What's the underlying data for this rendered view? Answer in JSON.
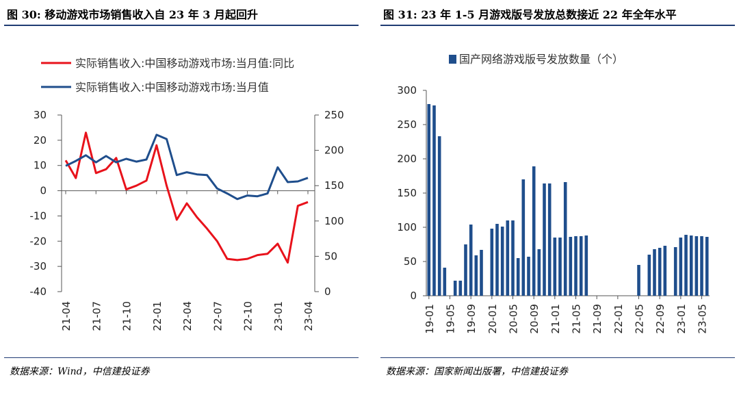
{
  "left": {
    "title": "图 30: 移动游戏市场销售收入自 23 年 3 月起回升",
    "source": "数据来源：Wind，中信建投证券",
    "chart_data": {
      "type": "line",
      "x": [
        "21-04",
        "21-05",
        "21-06",
        "21-07",
        "21-08",
        "21-09",
        "21-10",
        "21-11",
        "21-12",
        "22-01",
        "22-02",
        "22-03",
        "22-04",
        "22-05",
        "22-06",
        "22-07",
        "22-08",
        "22-09",
        "22-10",
        "22-11",
        "22-12",
        "23-01",
        "23-02",
        "23-03",
        "23-04"
      ],
      "x_tick_labels": [
        "21-04",
        "21-07",
        "21-10",
        "22-01",
        "22-04",
        "22-07",
        "22-10",
        "23-01",
        "23-04"
      ],
      "series": [
        {
          "name": "实际销售收入:中国移动游戏市场:当月值:同比",
          "axis": "left",
          "color": "#e8121b",
          "values": [
            12,
            5,
            23,
            7,
            8.5,
            13,
            0.5,
            2,
            4,
            18,
            2,
            -11.5,
            -5,
            -10.5,
            -15,
            -20,
            -27,
            -27.5,
            -27,
            -25.5,
            -25,
            -21,
            -28.5,
            -6,
            -4.5
          ]
        },
        {
          "name": "实际销售收入:中国移动游戏市场:当月值",
          "axis": "right",
          "color": "#1f4e8c",
          "values": [
            178,
            185,
            193,
            183,
            192,
            183,
            188,
            184,
            187,
            222,
            216,
            165,
            169,
            166,
            165,
            146,
            139,
            131,
            136,
            135,
            139,
            176,
            155,
            156,
            161
          ]
        }
      ],
      "y_left": {
        "ylim": [
          -40,
          30
        ],
        "ticks": [
          30,
          20,
          10,
          0,
          -10,
          -20,
          -30,
          -40
        ]
      },
      "y_right": {
        "ylim": [
          0,
          250
        ],
        "ticks": [
          250,
          200,
          150,
          100,
          50,
          0
        ]
      },
      "legend": "top-left"
    }
  },
  "right": {
    "title": "图 31: 23 年 1-5 月游戏版号发放总数接近 22 年全年水平",
    "source": "数据来源：国家新闻出版署，中信建投证券",
    "chart_data": {
      "type": "bar",
      "x_tick_labels": [
        "19-01",
        "19-05",
        "19-09",
        "20-01",
        "20-05",
        "20-09",
        "21-01",
        "21-05",
        "21-09",
        "22-01",
        "22-05",
        "22-09",
        "23-01",
        "23-05"
      ],
      "start_month": "19-01",
      "series": [
        {
          "name": "国产网络游戏版号发放数量（个）",
          "color": "#1f4e8c",
          "values": [
            280,
            278,
            233,
            41,
            0,
            22,
            22,
            75,
            104,
            59,
            67,
            0,
            98,
            105,
            101,
            110,
            110,
            55,
            170,
            57,
            189,
            68,
            164,
            164,
            85,
            85,
            166,
            86,
            87,
            87,
            88,
            0,
            0,
            0,
            0,
            0,
            0,
            0,
            0,
            0,
            45,
            0,
            60,
            68,
            70,
            73,
            0,
            71,
            85,
            89,
            88,
            87,
            87,
            86
          ]
        }
      ],
      "ylim": [
        0,
        300
      ],
      "y_ticks": [
        300,
        250,
        200,
        150,
        100,
        50,
        0
      ],
      "legend": "top"
    }
  }
}
